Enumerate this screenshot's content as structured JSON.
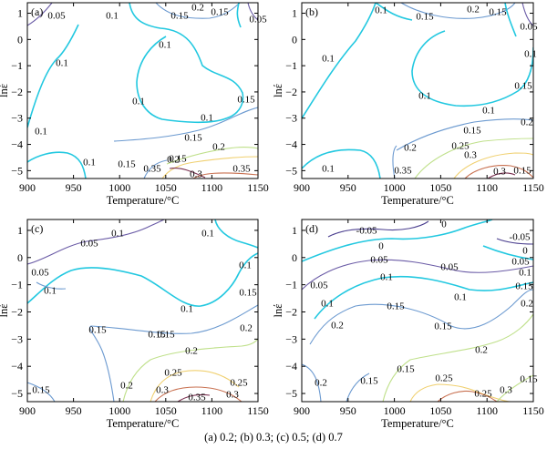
{
  "caption": "(a) 0.2; (b) 0.3; (c) 0.5; (d) 0.7",
  "axes": {
    "x_label": "Temperature/°C",
    "y_label": "lnέ",
    "x_ticks": [
      "900",
      "950",
      "1000",
      "1050",
      "1100",
      "1150"
    ],
    "y_ticks": [
      "1",
      "0",
      "−1",
      "−2",
      "−3",
      "−4",
      "−5"
    ]
  },
  "contour_colors": {
    "-0.05": "#4b3f8f",
    "0": "#22c8e0",
    "0.05": "#6a5ba6",
    "0.1": "#22c8e0",
    "0.15": "#6c9ad0",
    "0.2": "#bfe08a",
    "0.25": "#f0d070",
    "0.3": "#c87050",
    "0.35": "#7a3050"
  },
  "chart_data": [
    {
      "type": "contour",
      "panel_label": "(a)",
      "xlim": [
        900,
        1150
      ],
      "ylim": [
        -5.3,
        1.4
      ],
      "x_ticks": [
        900,
        950,
        1000,
        1050,
        1100,
        1150
      ],
      "y_ticks": [
        1,
        0,
        -1,
        -2,
        -3,
        -4,
        -5
      ],
      "xlabel": "Temperature/°C",
      "ylabel": "lnέ",
      "contours": [
        {
          "level": 0.05,
          "label": "0.05",
          "points": [
            [
              900,
              1.1
            ],
            [
              915,
              1.3
            ],
            [
              928,
              1.4
            ]
          ],
          "label_at": [
            913,
            1.2
          ]
        },
        {
          "level": 0.1,
          "label": "0.1",
          "points": [
            [
              973,
              1.4
            ],
            [
              978,
              1.0
            ],
            [
              990,
              0.8
            ],
            [
              1005,
              0.7
            ]
          ],
          "label_at": [
            990,
            1.2
          ]
        },
        {
          "level": 0.1,
          "label": "0.1",
          "points": [
            [
              1005,
              0.7
            ],
            [
              1030,
              0.5
            ],
            [
              1045,
              -0.1
            ],
            [
              1058,
              -0.6
            ],
            [
              1080,
              -0.5
            ],
            [
              1105,
              -0.8
            ],
            [
              1118,
              -1.2
            ],
            [
              1120,
              -1.8
            ],
            [
              1108,
              -2.4
            ],
            [
              1085,
              -2.6
            ],
            [
              1055,
              -2.6
            ],
            [
              1035,
              -2.3
            ],
            [
              1025,
              -1.4
            ],
            [
              1020,
              -0.6
            ],
            [
              1030,
              0.3
            ]
          ],
          "label_at": [
            1030,
            -0.5
          ]
        },
        {
          "level": 0.1,
          "label": "0.1",
          "points": [
            [
              1110,
              -2.6
            ],
            [
              1095,
              -2.7
            ],
            [
              1080,
              -2.6
            ]
          ],
          "label_at": [
            1070,
            -2.55
          ]
        },
        {
          "level": 0.1,
          "label": "0.1",
          "points": [
            [
              965,
              -0.4
            ],
            [
              950,
              -1.2
            ],
            [
              930,
              -2.0
            ],
            [
              912,
              -2.6
            ],
            [
              900,
              -3.5
            ]
          ],
          "label_at": [
            945,
            -0.3
          ]
        },
        {
          "level": 0.1,
          "label": "0.1",
          "points": [
            [
              1018,
              -1.9
            ],
            [
              1020,
              -1.5
            ]
          ],
          "label_at": [
            1018,
            -1.9
          ]
        },
        {
          "level": 0.1,
          "label": "0.1",
          "points": [
            [
              900,
              -4.8
            ],
            [
              915,
              -4.4
            ],
            [
              945,
              -4.3
            ],
            [
              965,
              -4.9
            ],
            [
              975,
              -5.3
            ]
          ],
          "label_at": [
            943,
            -4.6
          ]
        },
        {
          "level": 0.1,
          "label": "0.1",
          "points": [
            [
              1140,
              -0.6
            ],
            [
              1150,
              -0.5
            ]
          ],
          "label_at": [
            1140,
            -0.6
          ]
        },
        {
          "level": 0.05,
          "label": "0.05",
          "points": [
            [
              1140,
              1.4
            ],
            [
              1145,
              0.9
            ],
            [
              1150,
              0.6
            ]
          ],
          "label_at": [
            1140,
            0.9
          ]
        },
        {
          "level": 0.1,
          "label": "0.1",
          "points": [
            [
              1130,
              1.4
            ],
            [
              1128,
              1.0
            ],
            [
              1130,
              0.6
            ]
          ],
          "label_at": [
            1128,
            1.0
          ]
        },
        {
          "level": 0.15,
          "label": "0.15",
          "points": [
            [
              1035,
              1.2
            ],
            [
              1055,
              1.2
            ],
            [
              1075,
              1.25
            ],
            [
              1095,
              1.4
            ]
          ],
          "label_at": [
            1045,
            1.2
          ]
        },
        {
          "level": 0.2,
          "label": "0.2",
          "points": [
            [
              1085,
              1.4
            ],
            [
              1095,
              1.3
            ],
            [
              1115,
              1.3
            ],
            [
              1125,
              1.4
            ]
          ],
          "label_at": [
            1095,
            1.35
          ]
        },
        {
          "level": 0.15,
          "label": "0.15",
          "points": [
            [
              1115,
              1.2
            ],
            [
              1125,
              1.2
            ]
          ],
          "label_at": [
            1115,
            1.2
          ]
        },
        {
          "level": 0.15,
          "label": "0.15",
          "points": [
            [
              1150,
              -1.5
            ],
            [
              1145,
              -2.0
            ]
          ],
          "label_at": [
            1150,
            -2.0
          ]
        },
        {
          "level": 0.15,
          "label": "0.15",
          "points": [
            [
              1010,
              -3.5
            ],
            [
              1045,
              -3.4
            ],
            [
              1085,
              -3.2
            ],
            [
              1115,
              -2.9
            ],
            [
              1150,
              -2.6
            ]
          ],
          "label_at": [
            1050,
            -3.4
          ]
        },
        {
          "level": 0.2,
          "label": "0.2",
          "points": [
            [
              1070,
              -4.3
            ],
            [
              1095,
              -4.0
            ],
            [
              1120,
              -3.8
            ],
            [
              1150,
              -3.7
            ]
          ],
          "label_at": [
            1115,
            -3.9
          ]
        },
        {
          "level": 0.15,
          "label": "0.15",
          "points": [
            [
              1030,
              -5.3
            ],
            [
              1045,
              -4.7
            ],
            [
              1070,
              -4.3
            ]
          ],
          "label_at": [
            1030,
            -4.9
          ]
        },
        {
          "level": 0.2,
          "label": "0.2",
          "points": [
            [
              1055,
              -5.3
            ],
            [
              1065,
              -4.7
            ],
            [
              1085,
              -4.5
            ]
          ],
          "label_at": [
            1065,
            -4.5
          ]
        },
        {
          "level": 0.25,
          "label": "0.25",
          "points": [
            [
              1080,
              -5.3
            ],
            [
              1095,
              -4.6
            ],
            [
              1120,
              -4.3
            ],
            [
              1150,
              -4.2
            ]
          ],
          "label_at": [
            1090,
            -4.7
          ]
        },
        {
          "level": 0.35,
          "label": "0.35",
          "points": [
            [
              1065,
              -4.9
            ],
            [
              1080,
              -4.8
            ],
            [
              1100,
              -5.0
            ]
          ],
          "label_at": [
            1065,
            -4.9
          ]
        },
        {
          "level": 0.3,
          "label": "0.3",
          "points": [
            [
              1095,
              -5.3
            ],
            [
              1110,
              -5.1
            ],
            [
              1130,
              -5.1
            ],
            [
              1150,
              -5.2
            ]
          ],
          "label_at": [
            1095,
            -5.1
          ]
        },
        {
          "level": 0.35,
          "label": "0.35",
          "points": [
            [
              1120,
              -4.6
            ],
            [
              1140,
              -4.7
            ],
            [
              1150,
              -4.9
            ]
          ],
          "label_at": [
            1130,
            -4.8
          ]
        }
      ],
      "contour_labels": [
        "0.05",
        "0.1",
        "0.15",
        "0.2",
        "0.15",
        "0.05",
        "0.1",
        "0.1",
        "0.1",
        "0.15",
        "0.1",
        "0.15",
        "0.1",
        "0.2",
        "0.15",
        "0.1",
        "0.15",
        "0.35",
        "0.35",
        "0.3",
        "0.2"
      ]
    },
    {
      "type": "contour",
      "panel_label": "(b)",
      "xlim": [
        900,
        1150
      ],
      "ylim": [
        -5.3,
        1.4
      ],
      "x_ticks": [
        900,
        950,
        1000,
        1050,
        1100,
        1150
      ],
      "y_ticks": [
        1,
        0,
        -1,
        -2,
        -3,
        -4,
        -5
      ],
      "xlabel": "Temperature/°C",
      "ylabel": "lnέ",
      "contour_labels": [
        "0.1",
        "0.15",
        "0.2",
        "0.15",
        "0.05",
        "0.1",
        "0.1",
        "0.1",
        "0.15",
        "0.1",
        "0.2",
        "0.15",
        "0.2",
        "0.25",
        "0.1",
        "0.3",
        "0.35",
        "0.3",
        "0.15"
      ]
    },
    {
      "type": "contour",
      "panel_label": "(c)",
      "xlim": [
        900,
        1150
      ],
      "ylim": [
        -5.3,
        1.4
      ],
      "x_ticks": [
        900,
        950,
        1000,
        1050,
        1100,
        1150
      ],
      "y_ticks": [
        1,
        0,
        -1,
        -2,
        -3,
        -4,
        -5
      ],
      "xlabel": "Temperature/°C",
      "ylabel": "lnέ",
      "contour_labels": [
        "0.1",
        "0.1",
        "0.05",
        "0.05",
        "0.1",
        "0.1",
        "0.1",
        "0.15",
        "0.15",
        "0.15",
        "0.15",
        "0.2",
        "0.2",
        "0.25",
        "0.25",
        "0.2",
        "0.3",
        "0.35",
        "0.3",
        "0.15"
      ]
    },
    {
      "type": "contour",
      "panel_label": "(d)",
      "xlim": [
        900,
        1150
      ],
      "ylim": [
        -5.3,
        1.4
      ],
      "x_ticks": [
        900,
        950,
        1000,
        1050,
        1100,
        1150
      ],
      "y_ticks": [
        1,
        0,
        -1,
        -2,
        -3,
        -4,
        -5
      ],
      "xlabel": "Temperature/°C",
      "ylabel": "lnέ",
      "contour_labels": [
        "-0.05",
        "0",
        "0",
        "-0.05",
        "0",
        "0.05",
        "0.05",
        "0.05",
        "0.1",
        "0.1",
        "0.05",
        "0.1",
        "0.15",
        "0.1",
        "0.15",
        "0.15",
        "0.2",
        "0.2",
        "0.2",
        "0.15",
        "0.15",
        "0.2",
        "0.25",
        "0.3",
        "0.25",
        "0.15"
      ]
    }
  ]
}
